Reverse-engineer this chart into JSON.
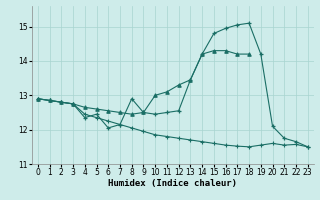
{
  "xlabel": "Humidex (Indice chaleur)",
  "bg_color": "#ceecea",
  "grid_color": "#a8d4d0",
  "line_color": "#1a6e65",
  "xlim": [
    -0.5,
    23.5
  ],
  "ylim": [
    11,
    15.6
  ],
  "yticks": [
    11,
    12,
    13,
    14,
    15
  ],
  "xticks": [
    0,
    1,
    2,
    3,
    4,
    5,
    6,
    7,
    8,
    9,
    10,
    11,
    12,
    13,
    14,
    15,
    16,
    17,
    18,
    19,
    20,
    21,
    22,
    23
  ],
  "s1_x": [
    0,
    1,
    2,
    3,
    4,
    5,
    6,
    7,
    8,
    9,
    10,
    11,
    12,
    13,
    14,
    15,
    16,
    17,
    18
  ],
  "s1_y": [
    12.9,
    12.85,
    12.8,
    12.75,
    12.65,
    12.6,
    12.55,
    12.5,
    12.45,
    12.5,
    13.0,
    13.1,
    13.3,
    13.45,
    14.2,
    14.3,
    14.3,
    14.2,
    14.2
  ],
  "s2_x": [
    0,
    1,
    2,
    3,
    4,
    5,
    6,
    7,
    8,
    9,
    10,
    11,
    12,
    13,
    14,
    15,
    16,
    17,
    18,
    19,
    20,
    21,
    22,
    23
  ],
  "s2_y": [
    12.9,
    12.85,
    12.8,
    12.75,
    12.45,
    12.35,
    12.25,
    12.15,
    12.05,
    11.95,
    11.85,
    11.8,
    11.75,
    11.7,
    11.65,
    11.6,
    11.55,
    11.52,
    11.5,
    11.55,
    11.6,
    11.55,
    11.57,
    11.5
  ],
  "s3_x": [
    0,
    1,
    2,
    3,
    4,
    5,
    6,
    7,
    8,
    9,
    10,
    11,
    12,
    13,
    14,
    15,
    16,
    17,
    18,
    19,
    20,
    21,
    22,
    23
  ],
  "s3_y": [
    12.9,
    12.85,
    12.8,
    12.75,
    12.35,
    12.45,
    12.05,
    12.15,
    12.9,
    12.5,
    12.45,
    12.5,
    12.55,
    13.45,
    14.2,
    14.8,
    14.95,
    15.05,
    15.1,
    14.2,
    12.1,
    11.75,
    11.65,
    11.5
  ]
}
